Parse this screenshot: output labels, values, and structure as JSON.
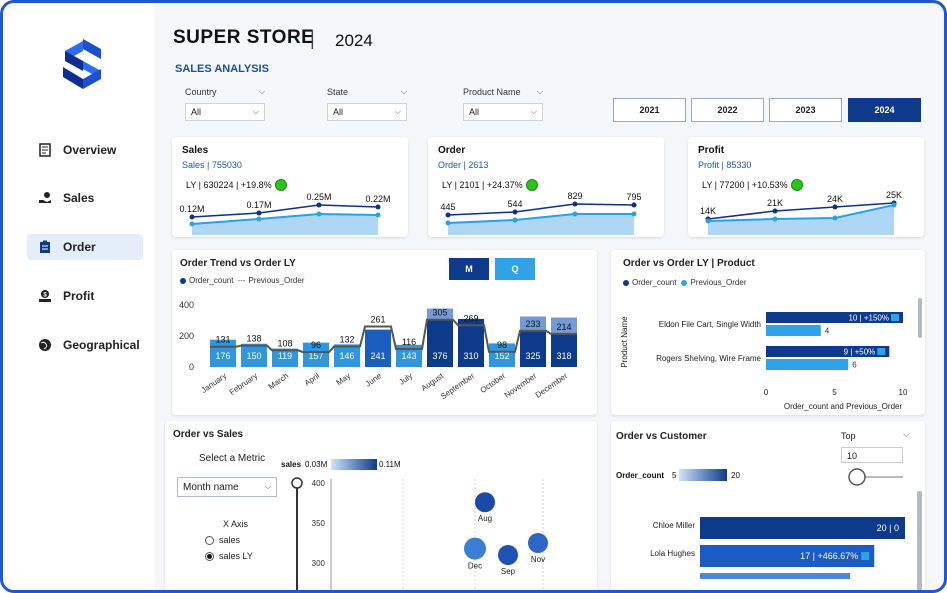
{
  "sidebar": {
    "logo_icon": "s-logo-icon",
    "items": [
      {
        "label": "Overview",
        "icon": "document-icon",
        "active": false
      },
      {
        "label": "Sales",
        "icon": "hand-coin-icon",
        "active": false
      },
      {
        "label": "Order",
        "icon": "clipboard-icon",
        "active": true
      },
      {
        "label": "Profit",
        "icon": "money-hand-icon",
        "active": false
      },
      {
        "label": "Geographical",
        "icon": "globe-icon",
        "active": false
      }
    ]
  },
  "header": {
    "title": "SUPER STORE",
    "separator": "|",
    "year": "2024",
    "subtitle": "SALES ANALYSIS"
  },
  "filters": [
    {
      "label": "Country",
      "value": "All"
    },
    {
      "label": "State",
      "value": "All"
    },
    {
      "label": "Product Name",
      "value": "All"
    }
  ],
  "years": {
    "options": [
      "2021",
      "2022",
      "2023",
      "2024"
    ],
    "selected": "2024"
  },
  "kpis": [
    {
      "title": "Sales",
      "sub": "Sales  | 755030",
      "ly": "LY  | 630224  | +19.8%",
      "points": [
        "0.12M",
        "0.17M",
        "0.25M",
        "0.22M"
      ]
    },
    {
      "title": "Order",
      "sub": "Order  | 2613",
      "ly": "LY  | 2101  | +24.37%",
      "points": [
        "445",
        "544",
        "829",
        "795"
      ]
    },
    {
      "title": "Profit",
      "sub": "Profit  | 85330",
      "ly": "LY  | 77200  | +10.53%",
      "points": [
        "14K",
        "21K",
        "24K",
        "25K"
      ]
    }
  ],
  "order_trend": {
    "title": "Order Trend vs Order LY",
    "legend": [
      "Order_count",
      "Previous_Order"
    ],
    "toggle": [
      "M",
      "Q"
    ],
    "chart_data": {
      "type": "bar",
      "categories": [
        "January",
        "February",
        "March",
        "April",
        "May",
        "June",
        "July",
        "August",
        "September",
        "October",
        "November",
        "December"
      ],
      "series": [
        {
          "name": "Order_count",
          "values": [
            176,
            150,
            119,
            157,
            146,
            241,
            143,
            376,
            310,
            152,
            325,
            318
          ]
        },
        {
          "name": "Previous_Order",
          "values": [
            131,
            138,
            108,
            96,
            132,
            261,
            116,
            305,
            269,
            98,
            233,
            214
          ]
        }
      ],
      "ylim": [
        0,
        400
      ],
      "yticks": [
        "0",
        "200",
        "400"
      ]
    }
  },
  "order_product": {
    "title": "Order vs Order LY | Product",
    "legend": [
      "Order_count",
      "Previous_Order"
    ],
    "y_title": "Product Name",
    "x_title": "Order_count and Previous_Order",
    "chart_data": {
      "type": "bar",
      "categories": [
        "Eldon File Cart, Single Width",
        "Rogers Shelving, Wire Frame"
      ],
      "series": [
        {
          "name": "Order_count",
          "values": [
            10,
            9
          ],
          "labels": [
            "10 | +150%",
            "9 | +50%"
          ]
        },
        {
          "name": "Previous_Order",
          "values": [
            4,
            6
          ],
          "labels": [
            "4",
            "6"
          ]
        }
      ],
      "xlim": [
        0,
        10
      ],
      "xticks": [
        "0",
        "5",
        "10"
      ]
    }
  },
  "order_sales": {
    "title": "Order vs Sales",
    "metric_label": "Select a Metric",
    "metric_value": "Month name",
    "xaxis_label": "X Axis",
    "radios": [
      {
        "label": "sales",
        "checked": false
      },
      {
        "label": "sales LY",
        "checked": true
      }
    ],
    "gradient": {
      "label": "sales",
      "min": "0.03M",
      "max": "0.11M"
    },
    "chart_data": {
      "type": "scatter",
      "yticks": [
        "400",
        "350",
        "300"
      ],
      "points": [
        {
          "label": "Aug",
          "y": 376
        },
        {
          "label": "Dec",
          "y": 318
        },
        {
          "label": "Sep",
          "y": 310
        },
        {
          "label": "Nov",
          "y": 325
        }
      ]
    }
  },
  "order_customer": {
    "title": "Order vs Customer",
    "gradient": {
      "label": "Order_count",
      "min": "5",
      "max": "20"
    },
    "top": {
      "label": "Top",
      "value": "10"
    },
    "chart_data": {
      "type": "bar",
      "categories": [
        "Chloe Miller",
        "Lola Hughes"
      ],
      "values": [
        20,
        17
      ],
      "labels": [
        "20 | 0",
        "17 | +466.67%"
      ]
    }
  }
}
